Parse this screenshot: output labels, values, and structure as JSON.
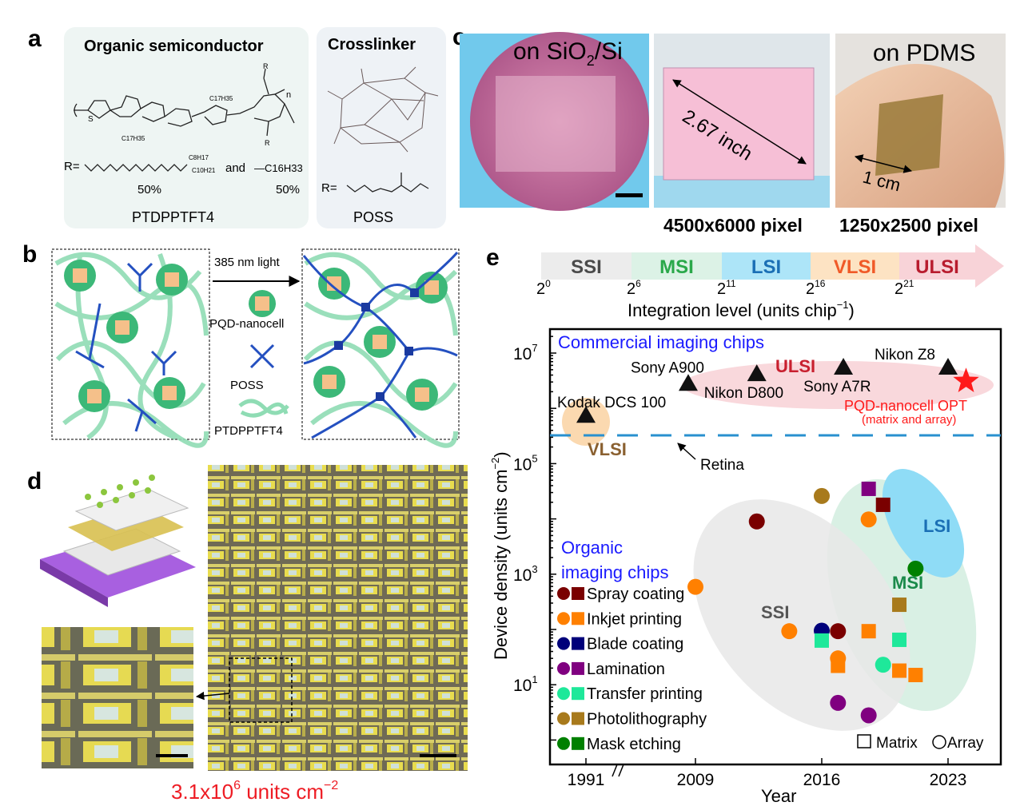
{
  "panels": {
    "a": {
      "letter": "a",
      "semiconductor_title": "Organic semiconductor",
      "crosslinker_title": "Crosslinker",
      "chain_label_1": "C17H35",
      "chain_label_2": "C17H35",
      "branch_top": "C8H17",
      "branch_bottom": "C10H21",
      "r_label": "R=",
      "and": "and",
      "linear_chain": "—C16H33",
      "pct_1": "50%",
      "pct_2": "50%",
      "polymer_name": "PTDPPTFT4",
      "repeat_n": "n",
      "poss_r_label": "R=",
      "crosslinker_name": "POSS"
    },
    "b": {
      "letter": "b",
      "light": "385 nm light",
      "pqd": "PQD-nanocell",
      "poss": "POSS",
      "polymer": "PTDPPTFT4"
    },
    "c": {
      "letter": "c",
      "sio2_prefix": "on SiO",
      "sio2_sub": "2",
      "sio2_suffix": "/Si",
      "size": "2.67 inch",
      "pdms": "on PDMS",
      "scale": "1 cm",
      "res_1": "4500x6000 pixel",
      "res_2": "1250x2500 pixel"
    },
    "d": {
      "letter": "d",
      "density_base": "3.1x10",
      "density_exp": "6",
      "density_unit": " units cm",
      "density_unit_exp": "−2"
    },
    "e": {
      "letter": "e",
      "integration": {
        "levels": [
          {
            "label": "SSI",
            "color": "#4a4a4a",
            "fill": "#ececec"
          },
          {
            "label": "MSI",
            "color": "#2aa84a",
            "fill": "#dcf2e6"
          },
          {
            "label": "LSI",
            "color": "#1a6fb5",
            "fill": "#ade5f8"
          },
          {
            "label": "VLSI",
            "color": "#f05a28",
            "fill": "#fde3c3"
          },
          {
            "label": "ULSI",
            "color": "#b81c2e",
            "fill": "#f8d3d8"
          }
        ],
        "ticks": [
          {
            "base": "2",
            "exp": "0"
          },
          {
            "base": "2",
            "exp": "6"
          },
          {
            "base": "2",
            "exp": "11"
          },
          {
            "base": "2",
            "exp": "16"
          },
          {
            "base": "2",
            "exp": "21"
          }
        ],
        "axis_label": "Integration level (units chip",
        "axis_label_exp": "−1",
        "axis_label_end": ")"
      }
    }
  },
  "chart_data": {
    "type": "scatter",
    "xlabel": "Year",
    "ylabel": "Device density (units cm",
    "ylabel_exp": "−2",
    "ylabel_end": ")",
    "yscale": "log",
    "ylim": [
      1,
      30000000
    ],
    "x_ticks": [
      "1991",
      "2009",
      "2016",
      "2023"
    ],
    "x_axis_break": "between 1991 and 2009",
    "y_ticks": [
      {
        "base": "10",
        "exp": "7",
        "value": 10000000
      },
      {
        "base": "10",
        "exp": "5",
        "value": 100000
      },
      {
        "base": "10",
        "exp": "3",
        "value": 1000
      },
      {
        "base": "10",
        "exp": "1",
        "value": 10
      }
    ],
    "commercial_title": "Commercial imaging chips",
    "organic_title_1": "Organic",
    "organic_title_2": "imaging chips",
    "retina": {
      "label": "Retina",
      "value": 320000
    },
    "region_labels": {
      "ulsi": "ULSI",
      "vlsi": "VLSI",
      "lsi": "LSI",
      "msi": "MSI",
      "ssi": "SSI"
    },
    "commercial": [
      {
        "name": "Kodak DCS 100",
        "year": 1991,
        "density": 740000
      },
      {
        "name": "Sony A900",
        "year": 2008.6,
        "density": 2800000
      },
      {
        "name": "Nikon D800",
        "year": 2012.4,
        "density": 4200000
      },
      {
        "name": "Sony A7R",
        "year": 2017.2,
        "density": 5500000
      },
      {
        "name": "Nikon Z8",
        "year": 2023,
        "density": 5500000
      }
    ],
    "highlight": {
      "name": "PQD-nanocell OPT",
      "note": "(matrix and array)",
      "year": 2024,
      "density": 3100000,
      "color": "#ff1a1a"
    },
    "methods": [
      {
        "name": "Spray coating",
        "color": "#7a0000"
      },
      {
        "name": "Inkjet printing",
        "color": "#ff8000"
      },
      {
        "name": "Blade coating",
        "color": "#00007a"
      },
      {
        "name": "Lamination",
        "color": "#800080"
      },
      {
        "name": "Transfer printing",
        "color": "#1ee89a"
      },
      {
        "name": "Photolithography",
        "color": "#a87a1c"
      },
      {
        "name": "Mask etching",
        "color": "#008000"
      }
    ],
    "marker_legend": {
      "matrix": "Matrix",
      "array": "Array"
    },
    "organic": [
      {
        "method": 0,
        "shape": "array",
        "year": 2012.4,
        "density": 9000
      },
      {
        "method": 5,
        "shape": "array",
        "year": 2016,
        "density": 26000
      },
      {
        "method": 3,
        "shape": "matrix",
        "year": 2018.6,
        "density": 35000
      },
      {
        "method": 0,
        "shape": "matrix",
        "year": 2019.4,
        "density": 18000
      },
      {
        "method": 1,
        "shape": "array",
        "year": 2018.6,
        "density": 9800
      },
      {
        "method": 6,
        "shape": "array",
        "year": 2021.2,
        "density": 1260
      },
      {
        "method": 1,
        "shape": "array",
        "year": 2009,
        "density": 590
      },
      {
        "method": 5,
        "shape": "matrix",
        "year": 2020.3,
        "density": 280
      },
      {
        "method": 1,
        "shape": "array",
        "year": 2014.2,
        "density": 93
      },
      {
        "method": 2,
        "shape": "array",
        "year": 2016,
        "density": 95
      },
      {
        "method": 0,
        "shape": "array",
        "year": 2016.9,
        "density": 93
      },
      {
        "method": 4,
        "shape": "matrix",
        "year": 2016,
        "density": 63
      },
      {
        "method": 1,
        "shape": "matrix",
        "year": 2018.6,
        "density": 93
      },
      {
        "method": 4,
        "shape": "matrix",
        "year": 2020.3,
        "density": 65
      },
      {
        "method": 1,
        "shape": "array",
        "year": 2016.9,
        "density": 30
      },
      {
        "method": 1,
        "shape": "matrix",
        "year": 2016.9,
        "density": 22
      },
      {
        "method": 4,
        "shape": "array",
        "year": 2019.4,
        "density": 23
      },
      {
        "method": 1,
        "shape": "matrix",
        "year": 2020.3,
        "density": 18
      },
      {
        "method": 1,
        "shape": "matrix",
        "year": 2021.2,
        "density": 15
      },
      {
        "method": 3,
        "shape": "array",
        "year": 2016.9,
        "density": 4.7
      },
      {
        "method": 3,
        "shape": "array",
        "year": 2018.6,
        "density": 2.8
      }
    ]
  }
}
